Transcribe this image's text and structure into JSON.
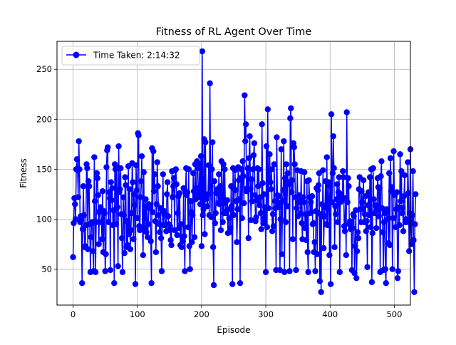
{
  "chart_data": {
    "type": "line",
    "title": "Fitness of RL Agent Over Time",
    "xlabel": "Episode",
    "ylabel": "Fitness",
    "xlim": [
      -25,
      525
    ],
    "ylim": [
      14,
      278
    ],
    "xticks": [
      0,
      100,
      200,
      300,
      400,
      500
    ],
    "yticks": [
      50,
      100,
      150,
      200,
      250
    ],
    "grid": true,
    "legend_position": "top-left",
    "marker": "circle",
    "series": [
      {
        "name": "Time Taken: 2:14:32",
        "color": "#0000ff",
        "x_start": 0,
        "x_step": 1,
        "values": [
          62,
          96,
          121,
          115,
          100,
          150,
          160,
          149,
          122,
          178,
          150,
          97,
          103,
          100,
          36,
          90,
          133,
          104,
          72,
          73,
          94,
          155,
          151,
          70,
          138,
          133,
          95,
          47,
          82,
          96,
          97,
          68,
          48,
          162,
          118,
          47,
          97,
          146,
          141,
          124,
          75,
          107,
          109,
          112,
          97,
          80,
          128,
          67,
          108,
          106,
          48,
          65,
          152,
          169,
          172,
          97,
          127,
          121,
          49,
          137,
          119,
          131,
          94,
          109,
          36,
          155,
          150,
          95,
          152,
          112,
          53,
          173,
          127,
          130,
          151,
          105,
          81,
          47,
          122,
          104,
          66,
          142,
          134,
          72,
          98,
          74,
          153,
          85,
          130,
          70,
          89,
          106,
          156,
          137,
          80,
          125,
          114,
          35,
          154,
          129,
          101,
          186,
          184,
          93,
          89,
          122,
          138,
          163,
          90,
          64,
          147,
          91,
          101,
          120,
          87,
          113,
          82,
          95,
          115,
          111,
          112,
          78,
          36,
          171,
          107,
          168,
          128,
          145,
          98,
          67,
          115,
          157,
          133,
          104,
          95,
          87,
          111,
          81,
          48,
          108,
          145,
          94,
          108,
          105,
          94,
          88,
          125,
          137,
          103,
          95,
          89,
          93,
          79,
          74,
          148,
          122,
          133,
          141,
          89,
          149,
          150,
          135,
          84,
          106,
          123,
          91,
          126,
          74,
          95,
          72,
          82,
          78,
          131,
          83,
          48,
          128,
          151,
          124,
          127,
          92,
          150,
          73,
          50,
          118,
          107,
          77,
          104,
          146,
          128,
          82,
          155,
          120,
          131,
          158,
          151,
          127,
          122,
          155,
          115,
          163,
          73,
          268,
          104,
          110,
          180,
          85,
          177,
          120,
          124,
          113,
          125,
          154,
          104,
          236,
          133,
          102,
          150,
          177,
          72,
          34,
          138,
          96,
          106,
          126,
          130,
          126,
          116,
          145,
          115,
          133,
          89,
          158,
          124,
          97,
          155,
          106,
          150,
          116,
          106,
          108,
          119,
          86,
          110,
          101,
          87,
          91,
          133,
          113,
          35,
          151,
          104,
          130,
          149,
          129,
          118,
          77,
          110,
          152,
          139,
          120,
          36,
          141,
          150,
          101,
          158,
          143,
          116,
          224,
          178,
          195,
          128,
          131,
          151,
          81,
          161,
          183,
          130,
          99,
          140,
          118,
          150,
          164,
          176,
          124,
          98,
          102,
          119,
          151,
          133,
          150,
          114,
          122,
          106,
          90,
          195,
          136,
          96,
          125,
          101,
          112,
          47,
          173,
          92,
          210,
          111,
          141,
          165,
          137,
          130,
          150,
          88,
          105,
          93,
          155,
          118,
          111,
          49,
          182,
          124,
          112,
          123,
          116,
          49,
          100,
          170,
          65,
          118,
          129,
          178,
          47,
          141,
          97,
          155,
          113,
          146,
          137,
          135,
          48,
          201,
          211,
          127,
          139,
          80,
          176,
          172,
          155,
          122,
          49,
          111,
          149,
          103,
          117,
          124,
          118,
          106,
          148,
          96,
          80,
          122,
          117,
          147,
          91,
          105,
          79,
          138,
          67,
          47,
          139,
          122,
          106,
          117,
          107,
          123,
          95,
          96,
          67,
          77,
          48,
          108,
          131,
          65,
          129,
          134,
          146,
          38,
          105,
          27,
          115,
          103,
          149,
          71,
          103,
          112,
          138,
          95,
          162,
          94,
          117,
          137,
          64,
          133,
          35,
          205,
          117,
          146,
          183,
          151,
          72,
          113,
          105,
          120,
          135,
          97,
          127,
          142,
          47,
          117,
          125,
          120,
          121,
          148,
          142,
          93,
          88,
          121,
          64,
          207,
          117,
          141,
          133,
          95,
          98,
          90,
          93,
          49,
          91,
          105,
          103,
          46,
          73,
          109,
          41,
          68,
          87,
          81,
          130,
          142,
          110,
          97,
          128,
          117,
          110,
          139,
          97,
          105,
          123,
          88,
          98,
          52,
          114,
          127,
          104,
          142,
          92,
          150,
          37,
          86,
          151,
          120,
          106,
          114,
          114,
          91,
          109,
          141,
          132,
          103,
          131,
          47,
          143,
          158,
          111,
          87,
          49,
          97,
          106,
          50,
          36,
          110,
          108,
          100,
          76,
          146,
          74,
          161,
          128,
          132,
          50,
          101,
          168,
          124,
          125,
          92,
          110,
          127,
          41,
          48,
          112,
          94,
          165,
          118,
          148,
          106,
          111,
          88,
          123,
          144,
          97,
          100,
          97,
          98,
          157,
          126,
          68,
          106,
          170,
          98,
          75,
          104,
          148,
          79,
          27,
          95,
          125
        ]
      }
    ]
  }
}
